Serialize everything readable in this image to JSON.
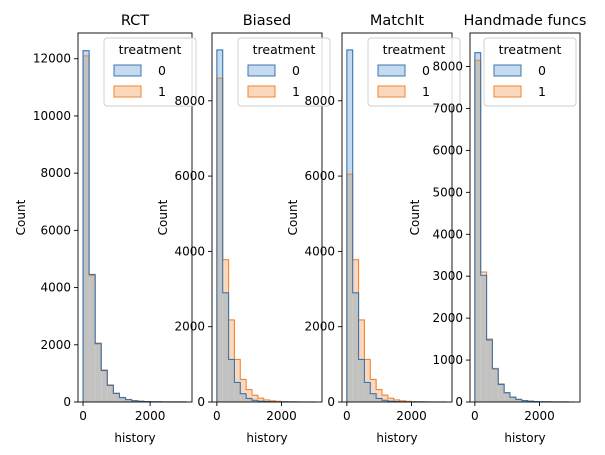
{
  "chart_data": [
    {
      "type": "bar",
      "title": "RCT",
      "xlabel": "history",
      "ylabel": "Count",
      "xlim": [
        -150,
        3250
      ],
      "ylim": [
        0,
        12900
      ],
      "xticks": [
        0,
        2000
      ],
      "yticks": [
        0,
        2000,
        4000,
        6000,
        8000,
        10000,
        12000
      ],
      "legend": {
        "title": "treatment",
        "placement": "top-right",
        "entries": [
          "0",
          "1"
        ]
      },
      "bin_edges": [
        0,
        181,
        362,
        543,
        724,
        905,
        1086,
        1267,
        1448,
        1629,
        1810,
        1991,
        2172,
        2353,
        2534,
        2715,
        2896,
        3077
      ],
      "series": [
        {
          "name": "0",
          "values": [
            12280,
            4460,
            2040,
            1100,
            580,
            300,
            155,
            85,
            45,
            25,
            14,
            8,
            5,
            3,
            2,
            1,
            1
          ]
        },
        {
          "name": "1",
          "values": [
            12100,
            4420,
            2060,
            1120,
            595,
            310,
            160,
            88,
            48,
            27,
            15,
            9,
            6,
            3,
            2,
            1,
            1
          ]
        }
      ]
    },
    {
      "type": "bar",
      "title": "Biased",
      "xlabel": "history",
      "ylabel": "Count",
      "xlim": [
        -150,
        3250
      ],
      "ylim": [
        0,
        9800
      ],
      "xticks": [
        0,
        2000
      ],
      "yticks": [
        0,
        2000,
        4000,
        6000,
        8000
      ],
      "legend": {
        "title": "treatment",
        "placement": "top-right",
        "entries": [
          "0",
          "1"
        ]
      },
      "bin_edges": [
        0,
        181,
        362,
        543,
        724,
        905,
        1086,
        1267,
        1448,
        1629,
        1810,
        1991,
        2172,
        2353,
        2534,
        2715,
        2896,
        3077
      ],
      "series": [
        {
          "name": "0",
          "values": [
            9350,
            2900,
            1130,
            520,
            220,
            95,
            45,
            22,
            11,
            6,
            3,
            2,
            1,
            1,
            0,
            0,
            0
          ]
        },
        {
          "name": "1",
          "values": [
            8600,
            3780,
            2180,
            1130,
            600,
            330,
            180,
            100,
            56,
            32,
            18,
            10,
            6,
            3,
            2,
            1,
            1
          ]
        }
      ]
    },
    {
      "type": "bar",
      "title": "MatchIt",
      "xlabel": "history",
      "ylabel": "Count",
      "xlim": [
        -150,
        3250
      ],
      "ylim": [
        0,
        9800
      ],
      "xticks": [
        0,
        2000
      ],
      "yticks": [
        0,
        2000,
        4000,
        6000,
        8000
      ],
      "legend": {
        "title": "treatment",
        "placement": "top-right",
        "entries": [
          "0",
          "1"
        ]
      },
      "bin_edges": [
        0,
        181,
        362,
        543,
        724,
        905,
        1086,
        1267,
        1448,
        1629,
        1810,
        1991,
        2172,
        2353,
        2534,
        2715,
        2896,
        3077
      ],
      "series": [
        {
          "name": "0",
          "values": [
            9350,
            2900,
            1130,
            520,
            220,
            95,
            45,
            22,
            11,
            6,
            3,
            2,
            1,
            1,
            0,
            0,
            0
          ]
        },
        {
          "name": "1",
          "values": [
            6050,
            3780,
            2180,
            1130,
            600,
            330,
            180,
            100,
            56,
            32,
            18,
            10,
            6,
            3,
            2,
            1,
            1
          ]
        }
      ]
    },
    {
      "type": "bar",
      "title": "Handmade funcs",
      "xlabel": "history",
      "ylabel": "Count",
      "xlim": [
        -150,
        3250
      ],
      "ylim": [
        0,
        8800
      ],
      "xticks": [
        0,
        2000
      ],
      "yticks": [
        0,
        1000,
        2000,
        3000,
        4000,
        5000,
        6000,
        7000,
        8000
      ],
      "legend": {
        "title": "treatment",
        "placement": "top-right",
        "entries": [
          "0",
          "1"
        ]
      },
      "bin_edges": [
        0,
        181,
        362,
        543,
        724,
        905,
        1086,
        1267,
        1448,
        1629,
        1810,
        1991,
        2172,
        2353,
        2534,
        2715,
        2896,
        3077
      ],
      "series": [
        {
          "name": "0",
          "values": [
            8330,
            3020,
            1480,
            790,
            420,
            220,
            115,
            62,
            34,
            19,
            11,
            6,
            4,
            2,
            1,
            1,
            0
          ]
        },
        {
          "name": "1",
          "values": [
            8150,
            3100,
            1500,
            800,
            430,
            225,
            118,
            64,
            35,
            20,
            11,
            6,
            4,
            2,
            1,
            1,
            0
          ]
        }
      ]
    }
  ],
  "colors": {
    "series_0_edge": "#3b75af",
    "series_0_fill": "#c5daee",
    "series_1_edge": "#ef8636",
    "series_1_fill": "#fbd8bc",
    "overlap_fill": "#c2c2c0",
    "axis": "#000000"
  }
}
